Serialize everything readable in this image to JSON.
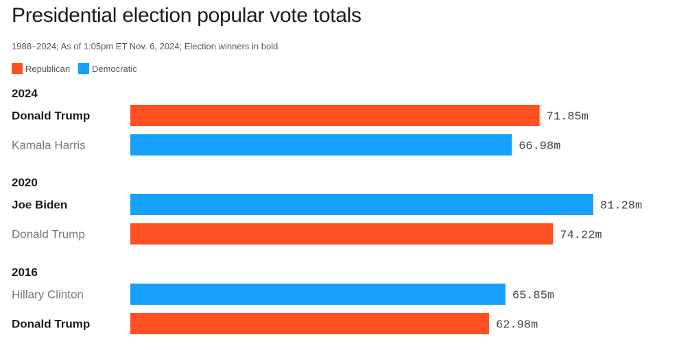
{
  "title": "Presidential election popular vote totals",
  "subtitle": "1988–2024; As of 1:05pm ET Nov. 6, 2024; Election winners in bold",
  "legend": [
    {
      "label": "Republican",
      "color": "#ff5122"
    },
    {
      "label": "Democratic",
      "color": "#16a1ff"
    }
  ],
  "chart_data": {
    "type": "bar",
    "orientation": "horizontal",
    "unit": "m",
    "xlim": [
      0,
      81.28
    ],
    "groups": [
      {
        "year": "2024",
        "entries": [
          {
            "name": "Donald Trump",
            "party": "Republican",
            "value": 71.85,
            "label": "71.85m",
            "winner": true
          },
          {
            "name": "Kamala Harris",
            "party": "Democratic",
            "value": 66.98,
            "label": "66.98m",
            "winner": false
          }
        ]
      },
      {
        "year": "2020",
        "entries": [
          {
            "name": "Joe Biden",
            "party": "Democratic",
            "value": 81.28,
            "label": "81.28m",
            "winner": true
          },
          {
            "name": "Donald Trump",
            "party": "Republican",
            "value": 74.22,
            "label": "74.22m",
            "winner": false
          }
        ]
      },
      {
        "year": "2016",
        "entries": [
          {
            "name": "Hillary Clinton",
            "party": "Democratic",
            "value": 65.85,
            "label": "65.85m",
            "winner": false
          },
          {
            "name": "Donald Trump",
            "party": "Republican",
            "value": 62.98,
            "label": "62.98m",
            "winner": true
          }
        ]
      }
    ]
  }
}
